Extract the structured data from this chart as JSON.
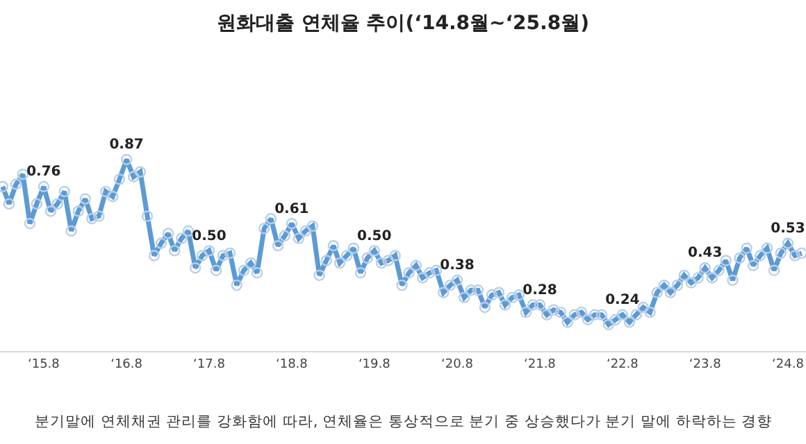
{
  "chart_data": {
    "type": "line",
    "title": "원화대출 연체율 추이(‘14.8월~‘25.8월)",
    "annotations": [
      "분기말에 연체채권 관리를 강화함에 따라, 연체율은 통상적으로 분기 중 상승했다가 분기 말에 하락하는 경향"
    ],
    "x": [
      "2015-02",
      "2015-03",
      "2015-04",
      "2015-05",
      "2015-06",
      "2015-07",
      "2015-08",
      "2015-09",
      "2015-10",
      "2015-11",
      "2015-12",
      "2016-01",
      "2016-02",
      "2016-03",
      "2016-04",
      "2016-05",
      "2016-06",
      "2016-07",
      "2016-08",
      "2016-09",
      "2016-10",
      "2016-11",
      "2016-12",
      "2017-01",
      "2017-02",
      "2017-03",
      "2017-04",
      "2017-05",
      "2017-06",
      "2017-07",
      "2017-08",
      "2017-09",
      "2017-10",
      "2017-11",
      "2017-12",
      "2018-01",
      "2018-02",
      "2018-03",
      "2018-04",
      "2018-05",
      "2018-06",
      "2018-07",
      "2018-08",
      "2018-09",
      "2018-10",
      "2018-11",
      "2018-12",
      "2019-01",
      "2019-02",
      "2019-03",
      "2019-04",
      "2019-05",
      "2019-06",
      "2019-07",
      "2019-08",
      "2019-09",
      "2019-10",
      "2019-11",
      "2019-12",
      "2020-01",
      "2020-02",
      "2020-03",
      "2020-04",
      "2020-05",
      "2020-06",
      "2020-07",
      "2020-08",
      "2020-09",
      "2020-10",
      "2020-11",
      "2020-12",
      "2021-01",
      "2021-02",
      "2021-03",
      "2021-04",
      "2021-05",
      "2021-06",
      "2021-07",
      "2021-08",
      "2021-09",
      "2021-10",
      "2021-11",
      "2021-12",
      "2022-01",
      "2022-02",
      "2022-03",
      "2022-04",
      "2022-05",
      "2022-06",
      "2022-07",
      "2022-08",
      "2022-09",
      "2022-10",
      "2022-11",
      "2022-12",
      "2023-01",
      "2023-02",
      "2023-03",
      "2023-04",
      "2023-05",
      "2023-06",
      "2023-07",
      "2023-08",
      "2023-09",
      "2023-10",
      "2023-11",
      "2023-12",
      "2024-01",
      "2024-02",
      "2024-03",
      "2024-04",
      "2024-05",
      "2024-06",
      "2024-07",
      "2024-08",
      "2024-09",
      "2024-10"
    ],
    "series": [
      {
        "color": "#5b9bd5",
        "values": [
          0.76,
          0.69,
          0.77,
          0.81,
          0.61,
          0.69,
          0.76,
          0.66,
          0.69,
          0.74,
          0.58,
          0.66,
          0.71,
          0.63,
          0.64,
          0.74,
          0.72,
          0.79,
          0.87,
          0.8,
          0.82,
          0.64,
          0.48,
          0.53,
          0.57,
          0.5,
          0.55,
          0.58,
          0.43,
          0.48,
          0.5,
          0.42,
          0.48,
          0.49,
          0.36,
          0.42,
          0.45,
          0.41,
          0.59,
          0.63,
          0.52,
          0.56,
          0.61,
          0.55,
          0.58,
          0.6,
          0.4,
          0.46,
          0.52,
          0.45,
          0.48,
          0.51,
          0.41,
          0.47,
          0.5,
          0.45,
          0.46,
          0.48,
          0.36,
          0.41,
          0.44,
          0.39,
          0.41,
          0.42,
          0.33,
          0.36,
          0.38,
          0.31,
          0.34,
          0.34,
          0.27,
          0.32,
          0.33,
          0.28,
          0.31,
          0.32,
          0.25,
          0.28,
          0.28,
          0.24,
          0.26,
          0.25,
          0.21,
          0.24,
          0.25,
          0.22,
          0.24,
          0.24,
          0.2,
          0.22,
          0.24,
          0.21,
          0.24,
          0.27,
          0.25,
          0.33,
          0.36,
          0.33,
          0.36,
          0.4,
          0.37,
          0.39,
          0.43,
          0.39,
          0.42,
          0.46,
          0.38,
          0.47,
          0.51,
          0.44,
          0.48,
          0.51,
          0.42,
          0.49,
          0.53,
          0.48,
          0.49
        ],
        "value_labels": [
          null,
          null,
          null,
          null,
          null,
          null,
          "0.76",
          null,
          null,
          null,
          null,
          null,
          null,
          null,
          null,
          null,
          null,
          null,
          "0.87",
          null,
          null,
          null,
          null,
          null,
          null,
          null,
          null,
          null,
          null,
          null,
          "0.50",
          null,
          null,
          null,
          null,
          null,
          null,
          null,
          null,
          null,
          null,
          null,
          "0.61",
          null,
          null,
          null,
          null,
          null,
          null,
          null,
          null,
          null,
          null,
          null,
          "0.50",
          null,
          null,
          null,
          null,
          null,
          null,
          null,
          null,
          null,
          null,
          null,
          "0.38",
          null,
          null,
          null,
          null,
          null,
          null,
          null,
          null,
          null,
          null,
          null,
          "0.28",
          null,
          null,
          null,
          null,
          null,
          null,
          null,
          null,
          null,
          null,
          null,
          "0.24",
          null,
          null,
          null,
          null,
          null,
          null,
          null,
          null,
          null,
          null,
          null,
          "0.43",
          null,
          null,
          null,
          null,
          null,
          null,
          null,
          null,
          null,
          null,
          null,
          "0.53",
          null,
          null
        ]
      }
    ],
    "xlim": [
      "2015-01-20",
      "2024-10-20"
    ],
    "xticks": [
      {
        "value": "2015-08",
        "label": "‘15.8"
      },
      {
        "value": "2016-08",
        "label": "‘16.8"
      },
      {
        "value": "2017-08",
        "label": "‘17.8"
      },
      {
        "value": "2018-08",
        "label": "‘18.8"
      },
      {
        "value": "2019-08",
        "label": "‘19.8"
      },
      {
        "value": "2020-08",
        "label": "‘20.8"
      },
      {
        "value": "2021-08",
        "label": "‘21.8"
      },
      {
        "value": "2022-08",
        "label": "‘22.8"
      },
      {
        "value": "2023-08",
        "label": "‘23.8"
      },
      {
        "value": "2024-08",
        "label": "‘24.8"
      }
    ],
    "tick_labels": "x",
    "legend": false,
    "marker": "circle",
    "line_style": "solid"
  }
}
